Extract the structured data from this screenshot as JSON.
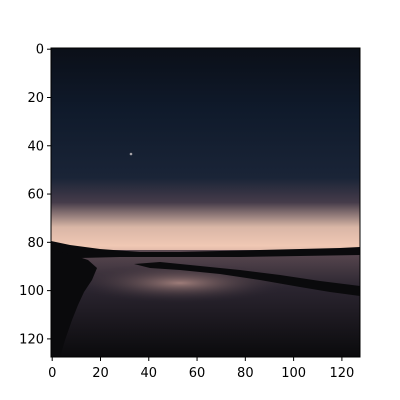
{
  "chart_data": {
    "type": "heatmap",
    "title": "",
    "xlabel": "",
    "ylabel": "",
    "x_ticks": [
      0,
      20,
      40,
      60,
      80,
      100,
      120
    ],
    "y_ticks": [
      0,
      20,
      40,
      60,
      80,
      100,
      120
    ],
    "xlim": [
      -0.5,
      127.5
    ],
    "ylim": [
      127.5,
      -0.5
    ],
    "image_size": [
      128,
      128
    ],
    "origin": "upper",
    "grid": false,
    "legend": "none",
    "colors": {
      "sky_top": "#0b0f18",
      "sky_upper": "#0f1a2b",
      "sky_mid": "#1a2437",
      "sky_glow": "#463c4a",
      "horizon_glow": "#d9b6a6",
      "horizon_band": "#f0c8b4",
      "horizon_lower": "#b9918a",
      "water": "#2b2530",
      "water_reflection": "#5c4a52",
      "land": "#0a0a0c"
    }
  }
}
